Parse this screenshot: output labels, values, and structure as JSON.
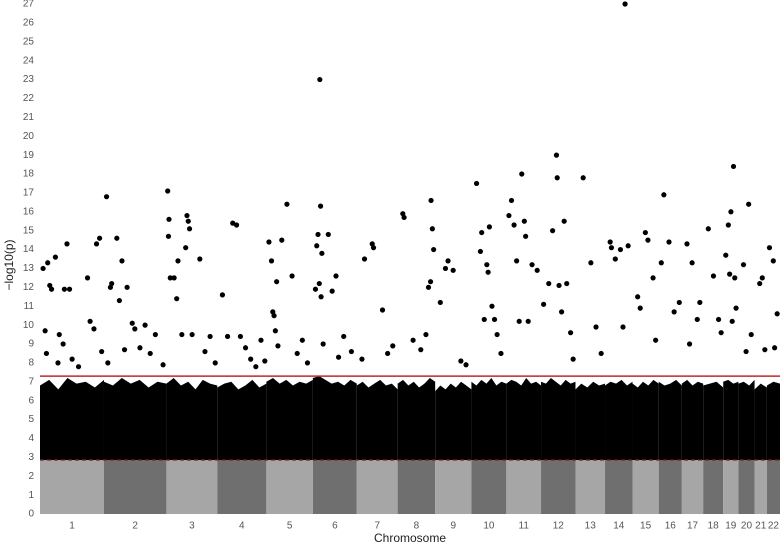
{
  "chart_data": {
    "type": "manhattan",
    "ylabel": "−log10(p)",
    "xlabel": "Chromosome",
    "ylim": [
      0,
      27
    ],
    "yticks": [
      0,
      1,
      2,
      3,
      4,
      5,
      6,
      7,
      8,
      9,
      10,
      11,
      12,
      13,
      14,
      15,
      16,
      17,
      18,
      19,
      20,
      21,
      22,
      23,
      24,
      25,
      26,
      27
    ],
    "grid": false,
    "point_color": "#000000",
    "band_colors": [
      "#a6a6a6",
      "#6f6f6f"
    ],
    "significance_line": 7.3,
    "significance_color": "#c0272d",
    "floor_line": 2.86,
    "floor_color": "#8b1a1a",
    "chromosomes": [
      {
        "name": "1",
        "length": 249,
        "envelope": [
          6.8,
          7.1,
          6.6,
          7.2,
          6.9,
          7.0,
          6.7,
          7.1
        ],
        "points": [
          [
            12,
            13.0
          ],
          [
            30,
            13.3
          ],
          [
            38,
            12.1
          ],
          [
            45,
            11.9
          ],
          [
            60,
            13.6
          ],
          [
            75,
            9.5
          ],
          [
            95,
            11.9
          ],
          [
            105,
            14.3
          ],
          [
            115,
            11.9
          ],
          [
            20,
            9.7
          ],
          [
            25,
            8.5
          ],
          [
            70,
            8.0
          ],
          [
            90,
            9.0
          ],
          [
            125,
            8.2
          ],
          [
            185,
            12.5
          ],
          [
            195,
            10.2
          ],
          [
            220,
            14.3
          ],
          [
            232,
            14.6
          ],
          [
            210,
            9.8
          ],
          [
            150,
            7.8
          ],
          [
            240,
            8.6
          ]
        ]
      },
      {
        "name": "2",
        "length": 243,
        "envelope": [
          7.0,
          6.8,
          7.2,
          6.9,
          7.1,
          6.7,
          7.0,
          6.9
        ],
        "points": [
          [
            10,
            16.8
          ],
          [
            30,
            12.2
          ],
          [
            25,
            12.0
          ],
          [
            50,
            14.6
          ],
          [
            60,
            11.3
          ],
          [
            70,
            13.4
          ],
          [
            90,
            12.0
          ],
          [
            110,
            10.1
          ],
          [
            120,
            9.8
          ],
          [
            80,
            8.7
          ],
          [
            140,
            8.8
          ],
          [
            160,
            10.0
          ],
          [
            180,
            8.5
          ],
          [
            200,
            9.5
          ],
          [
            15,
            8.0
          ],
          [
            230,
            7.9
          ]
        ]
      },
      {
        "name": "3",
        "length": 198,
        "envelope": [
          6.9,
          7.2,
          6.8,
          7.0,
          6.6,
          7.1,
          6.9,
          6.8
        ],
        "points": [
          [
            5,
            17.1
          ],
          [
            10,
            15.6
          ],
          [
            15,
            12.5
          ],
          [
            8,
            14.7
          ],
          [
            30,
            12.5
          ],
          [
            40,
            11.4
          ],
          [
            45,
            13.4
          ],
          [
            60,
            9.5
          ],
          [
            80,
            15.8
          ],
          [
            85,
            15.5
          ],
          [
            90,
            15.1
          ],
          [
            75,
            14.1
          ],
          [
            100,
            9.5
          ],
          [
            130,
            13.5
          ],
          [
            150,
            8.6
          ],
          [
            170,
            9.4
          ],
          [
            190,
            8.0
          ]
        ]
      },
      {
        "name": "4",
        "length": 191,
        "envelope": [
          6.7,
          6.9,
          7.0,
          6.6,
          6.8,
          7.1,
          6.7,
          6.9
        ],
        "points": [
          [
            20,
            11.6
          ],
          [
            40,
            9.4
          ],
          [
            60,
            15.4
          ],
          [
            75,
            15.3
          ],
          [
            90,
            9.4
          ],
          [
            110,
            8.8
          ],
          [
            130,
            8.2
          ],
          [
            150,
            7.8
          ],
          [
            170,
            9.2
          ],
          [
            185,
            8.1
          ]
        ]
      },
      {
        "name": "5",
        "length": 181,
        "envelope": [
          7.0,
          7.2,
          6.9,
          7.1,
          6.8,
          7.0,
          6.9,
          7.1
        ],
        "points": [
          [
            10,
            14.4
          ],
          [
            20,
            13.4
          ],
          [
            25,
            10.7
          ],
          [
            30,
            10.5
          ],
          [
            35,
            9.7
          ],
          [
            40,
            12.3
          ],
          [
            60,
            14.5
          ],
          [
            80,
            16.4
          ],
          [
            100,
            12.6
          ],
          [
            120,
            8.5
          ],
          [
            140,
            9.2
          ],
          [
            160,
            8.0
          ],
          [
            45,
            8.9
          ]
        ]
      },
      {
        "name": "6",
        "length": 171,
        "envelope": [
          7.2,
          7.3,
          7.1,
          6.9,
          7.0,
          6.8,
          7.1,
          6.9
        ],
        "points": [
          [
            27,
            23.0
          ],
          [
            30,
            16.3
          ],
          [
            20,
            14.8
          ],
          [
            15,
            14.2
          ],
          [
            25,
            12.2
          ],
          [
            35,
            13.8
          ],
          [
            32,
            11.5
          ],
          [
            10,
            11.9
          ],
          [
            40,
            9.0
          ],
          [
            60,
            14.8
          ],
          [
            75,
            11.8
          ],
          [
            90,
            12.6
          ],
          [
            120,
            9.4
          ],
          [
            150,
            8.6
          ],
          [
            100,
            8.3
          ]
        ]
      },
      {
        "name": "7",
        "length": 159,
        "envelope": [
          6.8,
          7.0,
          6.7,
          6.9,
          7.1,
          6.8,
          6.9,
          6.6
        ],
        "points": [
          [
            30,
            13.5
          ],
          [
            60,
            14.3
          ],
          [
            65,
            14.1
          ],
          [
            100,
            10.8
          ],
          [
            120,
            8.5
          ],
          [
            140,
            8.9
          ],
          [
            20,
            8.2
          ]
        ]
      },
      {
        "name": "8",
        "length": 146,
        "envelope": [
          6.9,
          7.1,
          6.8,
          7.0,
          6.7,
          6.9,
          7.2,
          7.0
        ],
        "points": [
          [
            20,
            15.9
          ],
          [
            25,
            15.7
          ],
          [
            60,
            9.2
          ],
          [
            90,
            8.7
          ],
          [
            120,
            12.0
          ],
          [
            130,
            16.6
          ],
          [
            135,
            15.1
          ],
          [
            140,
            14.0
          ],
          [
            128,
            12.3
          ],
          [
            110,
            9.5
          ]
        ]
      },
      {
        "name": "9",
        "length": 141,
        "envelope": [
          6.5,
          6.8,
          6.6,
          6.9,
          6.7,
          7.0,
          6.8,
          6.6
        ],
        "points": [
          [
            20,
            11.2
          ],
          [
            40,
            13.0
          ],
          [
            50,
            13.4
          ],
          [
            70,
            12.9
          ],
          [
            100,
            8.1
          ],
          [
            120,
            7.9
          ]
        ]
      },
      {
        "name": "10",
        "length": 136,
        "envelope": [
          7.0,
          6.8,
          7.1,
          6.9,
          7.2,
          6.8,
          7.0,
          6.9
        ],
        "points": [
          [
            20,
            17.5
          ],
          [
            35,
            13.9
          ],
          [
            40,
            14.9
          ],
          [
            60,
            13.2
          ],
          [
            65,
            12.8
          ],
          [
            70,
            15.2
          ],
          [
            80,
            11.0
          ],
          [
            90,
            10.3
          ],
          [
            100,
            9.5
          ],
          [
            50,
            10.3
          ],
          [
            115,
            8.5
          ]
        ]
      },
      {
        "name": "11",
        "length": 135,
        "envelope": [
          6.9,
          7.1,
          7.0,
          6.8,
          7.2,
          6.9,
          7.0,
          6.8
        ],
        "points": [
          [
            10,
            15.8
          ],
          [
            20,
            16.6
          ],
          [
            30,
            15.3
          ],
          [
            40,
            13.4
          ],
          [
            60,
            18.0
          ],
          [
            70,
            15.5
          ],
          [
            75,
            14.7
          ],
          [
            85,
            10.2
          ],
          [
            100,
            13.2
          ],
          [
            120,
            12.9
          ],
          [
            50,
            10.2
          ]
        ]
      },
      {
        "name": "12",
        "length": 134,
        "envelope": [
          7.0,
          6.9,
          7.2,
          7.0,
          6.8,
          7.1,
          6.9,
          7.0
        ],
        "points": [
          [
            10,
            11.1
          ],
          [
            30,
            12.2
          ],
          [
            45,
            15.0
          ],
          [
            60,
            19.0
          ],
          [
            63,
            17.8
          ],
          [
            70,
            12.1
          ],
          [
            90,
            15.5
          ],
          [
            100,
            12.2
          ],
          [
            80,
            10.7
          ],
          [
            115,
            9.6
          ],
          [
            125,
            8.2
          ]
        ]
      },
      {
        "name": "13",
        "length": 115,
        "envelope": [
          6.6,
          6.9,
          6.7,
          7.0,
          6.8,
          6.9
        ],
        "points": [
          [
            30,
            17.8
          ],
          [
            60,
            13.3
          ],
          [
            80,
            9.9
          ],
          [
            100,
            8.5
          ]
        ]
      },
      {
        "name": "14",
        "length": 107,
        "envelope": [
          6.8,
          7.0,
          6.9,
          7.1,
          6.8,
          7.0
        ],
        "points": [
          [
            78,
            27.0
          ],
          [
            20,
            14.4
          ],
          [
            25,
            14.1
          ],
          [
            40,
            13.5
          ],
          [
            60,
            14.0
          ],
          [
            90,
            14.2
          ],
          [
            70,
            9.9
          ]
        ]
      },
      {
        "name": "15",
        "length": 102,
        "envelope": [
          6.9,
          6.7,
          7.0,
          6.8,
          7.1,
          6.9
        ],
        "points": [
          [
            20,
            11.5
          ],
          [
            30,
            10.9
          ],
          [
            50,
            14.9
          ],
          [
            60,
            14.5
          ],
          [
            80,
            12.5
          ],
          [
            90,
            9.2
          ]
        ]
      },
      {
        "name": "16",
        "length": 90,
        "envelope": [
          7.0,
          6.8,
          6.9,
          7.1,
          6.8
        ],
        "points": [
          [
            10,
            13.3
          ],
          [
            20,
            16.9
          ],
          [
            40,
            14.4
          ],
          [
            60,
            10.7
          ],
          [
            80,
            11.2
          ]
        ]
      },
      {
        "name": "17",
        "length": 83,
        "envelope": [
          6.9,
          7.1,
          6.8,
          7.0,
          6.9
        ],
        "points": [
          [
            20,
            14.3
          ],
          [
            40,
            13.3
          ],
          [
            60,
            10.3
          ],
          [
            70,
            11.2
          ],
          [
            30,
            9.0
          ]
        ]
      },
      {
        "name": "18",
        "length": 78,
        "envelope": [
          6.8,
          6.9,
          7.0,
          6.7
        ],
        "points": [
          [
            20,
            15.1
          ],
          [
            40,
            12.6
          ],
          [
            60,
            10.3
          ],
          [
            70,
            9.6
          ]
        ]
      },
      {
        "name": "19",
        "length": 59,
        "envelope": [
          7.0,
          7.1,
          6.9,
          7.0
        ],
        "points": [
          [
            10,
            13.7
          ],
          [
            20,
            15.3
          ],
          [
            30,
            16.0
          ],
          [
            40,
            18.4
          ],
          [
            45,
            12.5
          ],
          [
            50,
            10.9
          ],
          [
            25,
            12.7
          ],
          [
            35,
            10.2
          ]
        ]
      },
      {
        "name": "20",
        "length": 63,
        "envelope": [
          6.9,
          7.0,
          6.8,
          7.1
        ],
        "points": [
          [
            20,
            13.2
          ],
          [
            40,
            16.4
          ],
          [
            50,
            9.5
          ],
          [
            30,
            8.6
          ]
        ]
      },
      {
        "name": "21",
        "length": 48,
        "envelope": [
          6.6,
          6.9,
          6.7
        ],
        "points": [
          [
            20,
            12.2
          ],
          [
            30,
            12.5
          ],
          [
            40,
            8.7
          ]
        ]
      },
      {
        "name": "22",
        "length": 51,
        "envelope": [
          6.8,
          7.0,
          6.9
        ],
        "points": [
          [
            10,
            14.1
          ],
          [
            25,
            13.4
          ],
          [
            40,
            10.6
          ],
          [
            30,
            8.8
          ]
        ]
      }
    ]
  }
}
